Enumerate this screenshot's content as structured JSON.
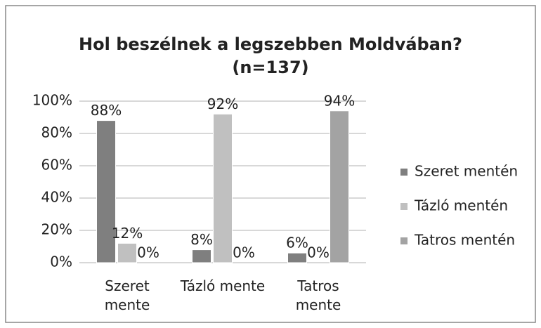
{
  "chart_data": {
    "type": "bar",
    "title": "Hol beszélnek a legszebben Moldvában?",
    "subtitle": "(n=137)",
    "categories": [
      "Szeret mente",
      "Tázló mente",
      "Tatros mente"
    ],
    "series": [
      {
        "name": "Szeret mentén",
        "color": "#7f7f7f",
        "values": [
          88,
          8,
          6
        ],
        "value_labels": [
          "88%",
          "8%",
          "6%"
        ]
      },
      {
        "name": "Tázló mentén",
        "color": "#c0c0c0",
        "values": [
          12,
          92,
          0
        ],
        "value_labels": [
          "12%",
          "92%",
          "0%"
        ]
      },
      {
        "name": "Tatros mentén",
        "color": "#a3a3a3",
        "values": [
          0,
          0,
          94
        ],
        "value_labels": [
          "0%",
          "0%",
          "94%"
        ]
      }
    ],
    "ylim": [
      0,
      100
    ],
    "yticks": [
      {
        "value": 0,
        "label": "0%"
      },
      {
        "value": 20,
        "label": "20%"
      },
      {
        "value": 40,
        "label": "40%"
      },
      {
        "value": 60,
        "label": "60%"
      },
      {
        "value": 80,
        "label": "80%"
      },
      {
        "value": 100,
        "label": "100%"
      }
    ],
    "grid": true,
    "legend": "right"
  }
}
